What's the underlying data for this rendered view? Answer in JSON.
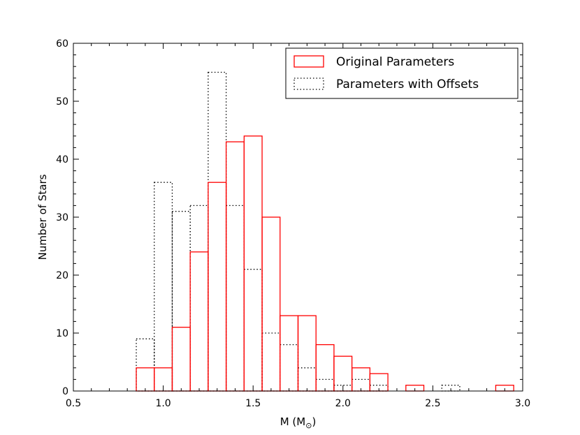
{
  "chart_data": {
    "type": "bar",
    "title": "",
    "xlabel": "M (M",
    "xlabel_sub": "⊙",
    "xlabel_close": ")",
    "ylabel": "Number of Stars",
    "xlim": [
      0.5,
      3.0
    ],
    "ylim": [
      0,
      60
    ],
    "xticks": [
      0.5,
      1.0,
      1.5,
      2.0,
      2.5,
      3.0
    ],
    "xtick_labels": [
      "0.5",
      "1.0",
      "1.5",
      "2.0",
      "2.5",
      "3.0"
    ],
    "yticks": [
      0,
      10,
      20,
      30,
      40,
      50,
      60
    ],
    "ytick_labels": [
      "0",
      "10",
      "20",
      "30",
      "40",
      "50",
      "60"
    ],
    "grid": false,
    "legend_position": "top-right",
    "series": [
      {
        "name": "Original Parameters",
        "style": "solid",
        "color": "#ff0000",
        "bins": [
          {
            "x0": 0.85,
            "x1": 0.95,
            "value": 4
          },
          {
            "x0": 0.95,
            "x1": 1.05,
            "value": 4
          },
          {
            "x0": 1.05,
            "x1": 1.15,
            "value": 11
          },
          {
            "x0": 1.15,
            "x1": 1.25,
            "value": 24
          },
          {
            "x0": 1.25,
            "x1": 1.35,
            "value": 36
          },
          {
            "x0": 1.35,
            "x1": 1.45,
            "value": 43
          },
          {
            "x0": 1.45,
            "x1": 1.55,
            "value": 44
          },
          {
            "x0": 1.55,
            "x1": 1.65,
            "value": 30
          },
          {
            "x0": 1.65,
            "x1": 1.75,
            "value": 13
          },
          {
            "x0": 1.75,
            "x1": 1.85,
            "value": 13
          },
          {
            "x0": 1.85,
            "x1": 1.95,
            "value": 8
          },
          {
            "x0": 1.95,
            "x1": 2.05,
            "value": 6
          },
          {
            "x0": 2.05,
            "x1": 2.15,
            "value": 4
          },
          {
            "x0": 2.15,
            "x1": 2.25,
            "value": 3
          },
          {
            "x0": 2.35,
            "x1": 2.45,
            "value": 1
          },
          {
            "x0": 2.85,
            "x1": 2.95,
            "value": 1
          }
        ]
      },
      {
        "name": "Parameters with Offsets",
        "style": "dotted",
        "color": "#000000",
        "bins": [
          {
            "x0": 0.85,
            "x1": 0.95,
            "value": 9
          },
          {
            "x0": 0.95,
            "x1": 1.05,
            "value": 36
          },
          {
            "x0": 1.05,
            "x1": 1.15,
            "value": 31
          },
          {
            "x0": 1.15,
            "x1": 1.25,
            "value": 32
          },
          {
            "x0": 1.25,
            "x1": 1.35,
            "value": 55
          },
          {
            "x0": 1.35,
            "x1": 1.45,
            "value": 32
          },
          {
            "x0": 1.45,
            "x1": 1.55,
            "value": 21
          },
          {
            "x0": 1.55,
            "x1": 1.65,
            "value": 10
          },
          {
            "x0": 1.65,
            "x1": 1.75,
            "value": 8
          },
          {
            "x0": 1.75,
            "x1": 1.85,
            "value": 4
          },
          {
            "x0": 1.85,
            "x1": 1.95,
            "value": 2
          },
          {
            "x0": 1.95,
            "x1": 2.05,
            "value": 1
          },
          {
            "x0": 2.05,
            "x1": 2.15,
            "value": 2
          },
          {
            "x0": 2.15,
            "x1": 2.25,
            "value": 1
          },
          {
            "x0": 2.55,
            "x1": 2.65,
            "value": 1
          }
        ]
      }
    ]
  }
}
